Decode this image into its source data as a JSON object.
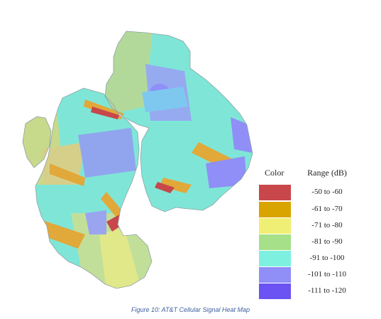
{
  "legend": {
    "color_header": "Color",
    "range_header": "Range (dB)",
    "entries": [
      {
        "range": "-50 to -60",
        "color": "#c8474a"
      },
      {
        "range": "-61 to -70",
        "color": "#d9a400"
      },
      {
        "range": "-71 to -80",
        "color": "#f0ef75"
      },
      {
        "range": "-81 to -90",
        "color": "#a6e089"
      },
      {
        "range": "-91 to -100",
        "color": "#7ef0e0"
      },
      {
        "range": "-101 to -110",
        "color": "#8f8ff7"
      },
      {
        "range": "-111 to -120",
        "color": "#6a53f2"
      }
    ]
  },
  "caption": "Figure 10: AT&T Cellular Signal Heat Map"
}
